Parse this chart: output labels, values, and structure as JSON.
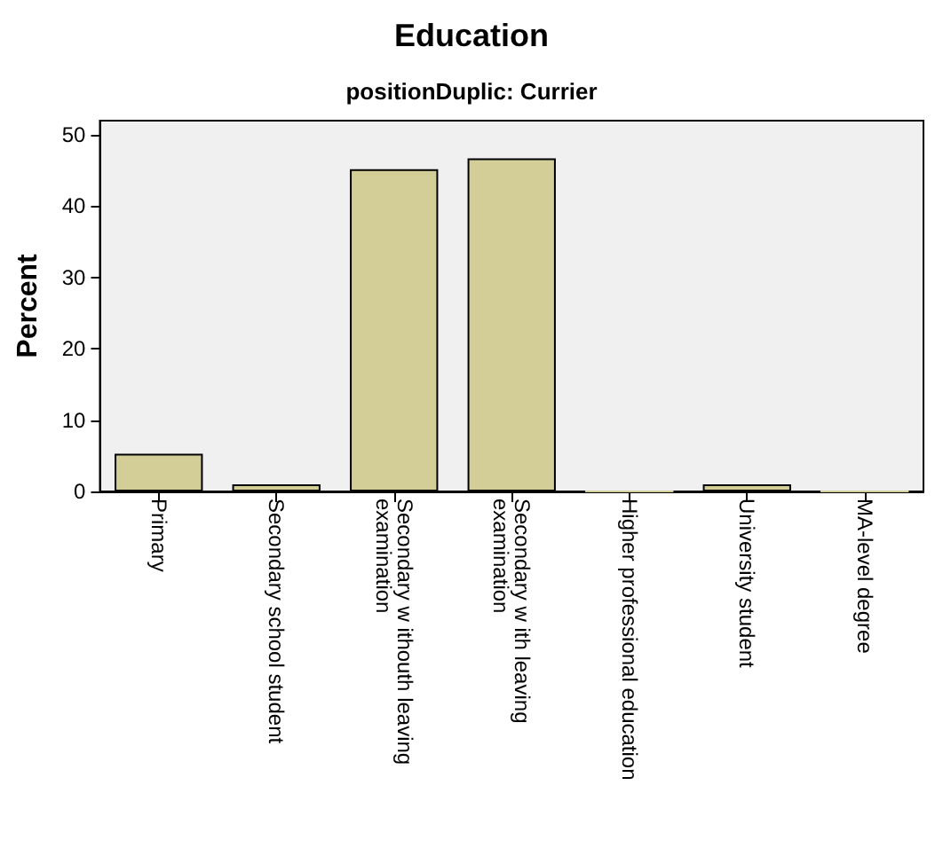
{
  "chart_data": {
    "type": "bar",
    "title": "Education",
    "subtitle": "positionDuplic: Currier",
    "ylabel": "Percent",
    "categories": [
      "Primary",
      "Secondary school student",
      "Secondary w ithouth leaving examination",
      "Secondary w ith leaving examination",
      "Higher professional education",
      "University student",
      "MA-level degree"
    ],
    "values": [
      5.3,
      1.0,
      45.2,
      46.7,
      0,
      1.0,
      0
    ],
    "color": "#d3ce97",
    "ylim": [
      0,
      52
    ],
    "yticks": [
      0,
      10,
      20,
      30,
      40,
      50
    ],
    "grid": false
  }
}
